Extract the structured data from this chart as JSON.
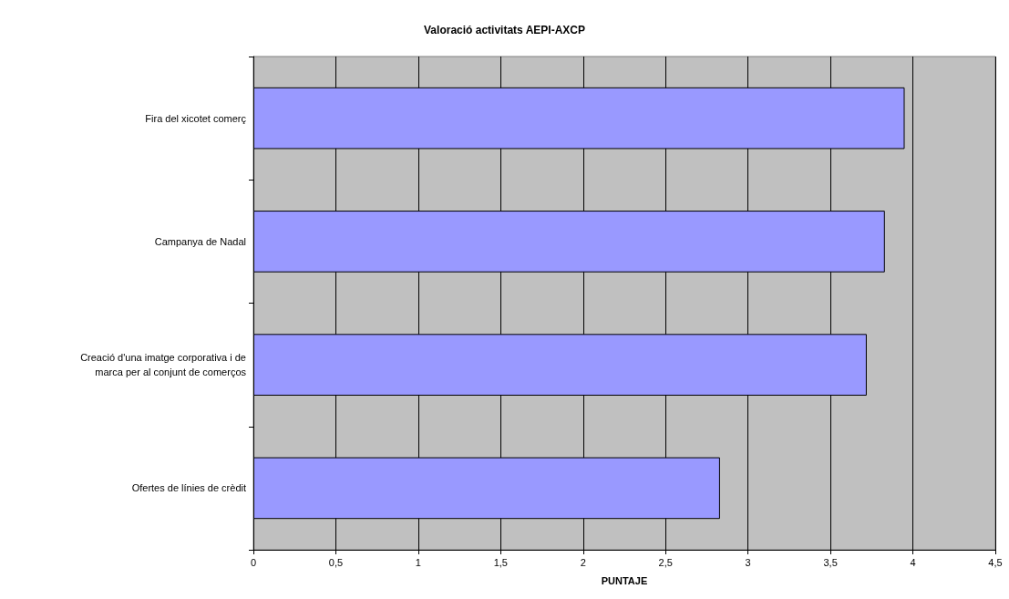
{
  "chart_data": {
    "type": "bar",
    "orientation": "horizontal",
    "title": "Valoració activitats AEPI-AXCP",
    "xlabel": "PUNTAJE",
    "categories": [
      "Fira del xicotet comerç",
      "Campanya de Nadal",
      "Creació d'una imatge corporativa i de marca per al conjunt de comerços",
      "Ofertes de línies de crèdit"
    ],
    "values": [
      3.95,
      3.83,
      3.72,
      2.83
    ],
    "color": "#9999ff",
    "xlim": [
      0,
      4.5
    ],
    "xticks": [
      0,
      {
        "value": 0.5,
        "label": "0,5"
      },
      1,
      {
        "value": 1.5,
        "label": "1,5"
      },
      2,
      {
        "value": 2.5,
        "label": "2,5"
      },
      3,
      {
        "value": 3.5,
        "label": "3,5"
      },
      4,
      {
        "value": 4.5,
        "label": "4,5"
      }
    ],
    "grid": "x"
  }
}
